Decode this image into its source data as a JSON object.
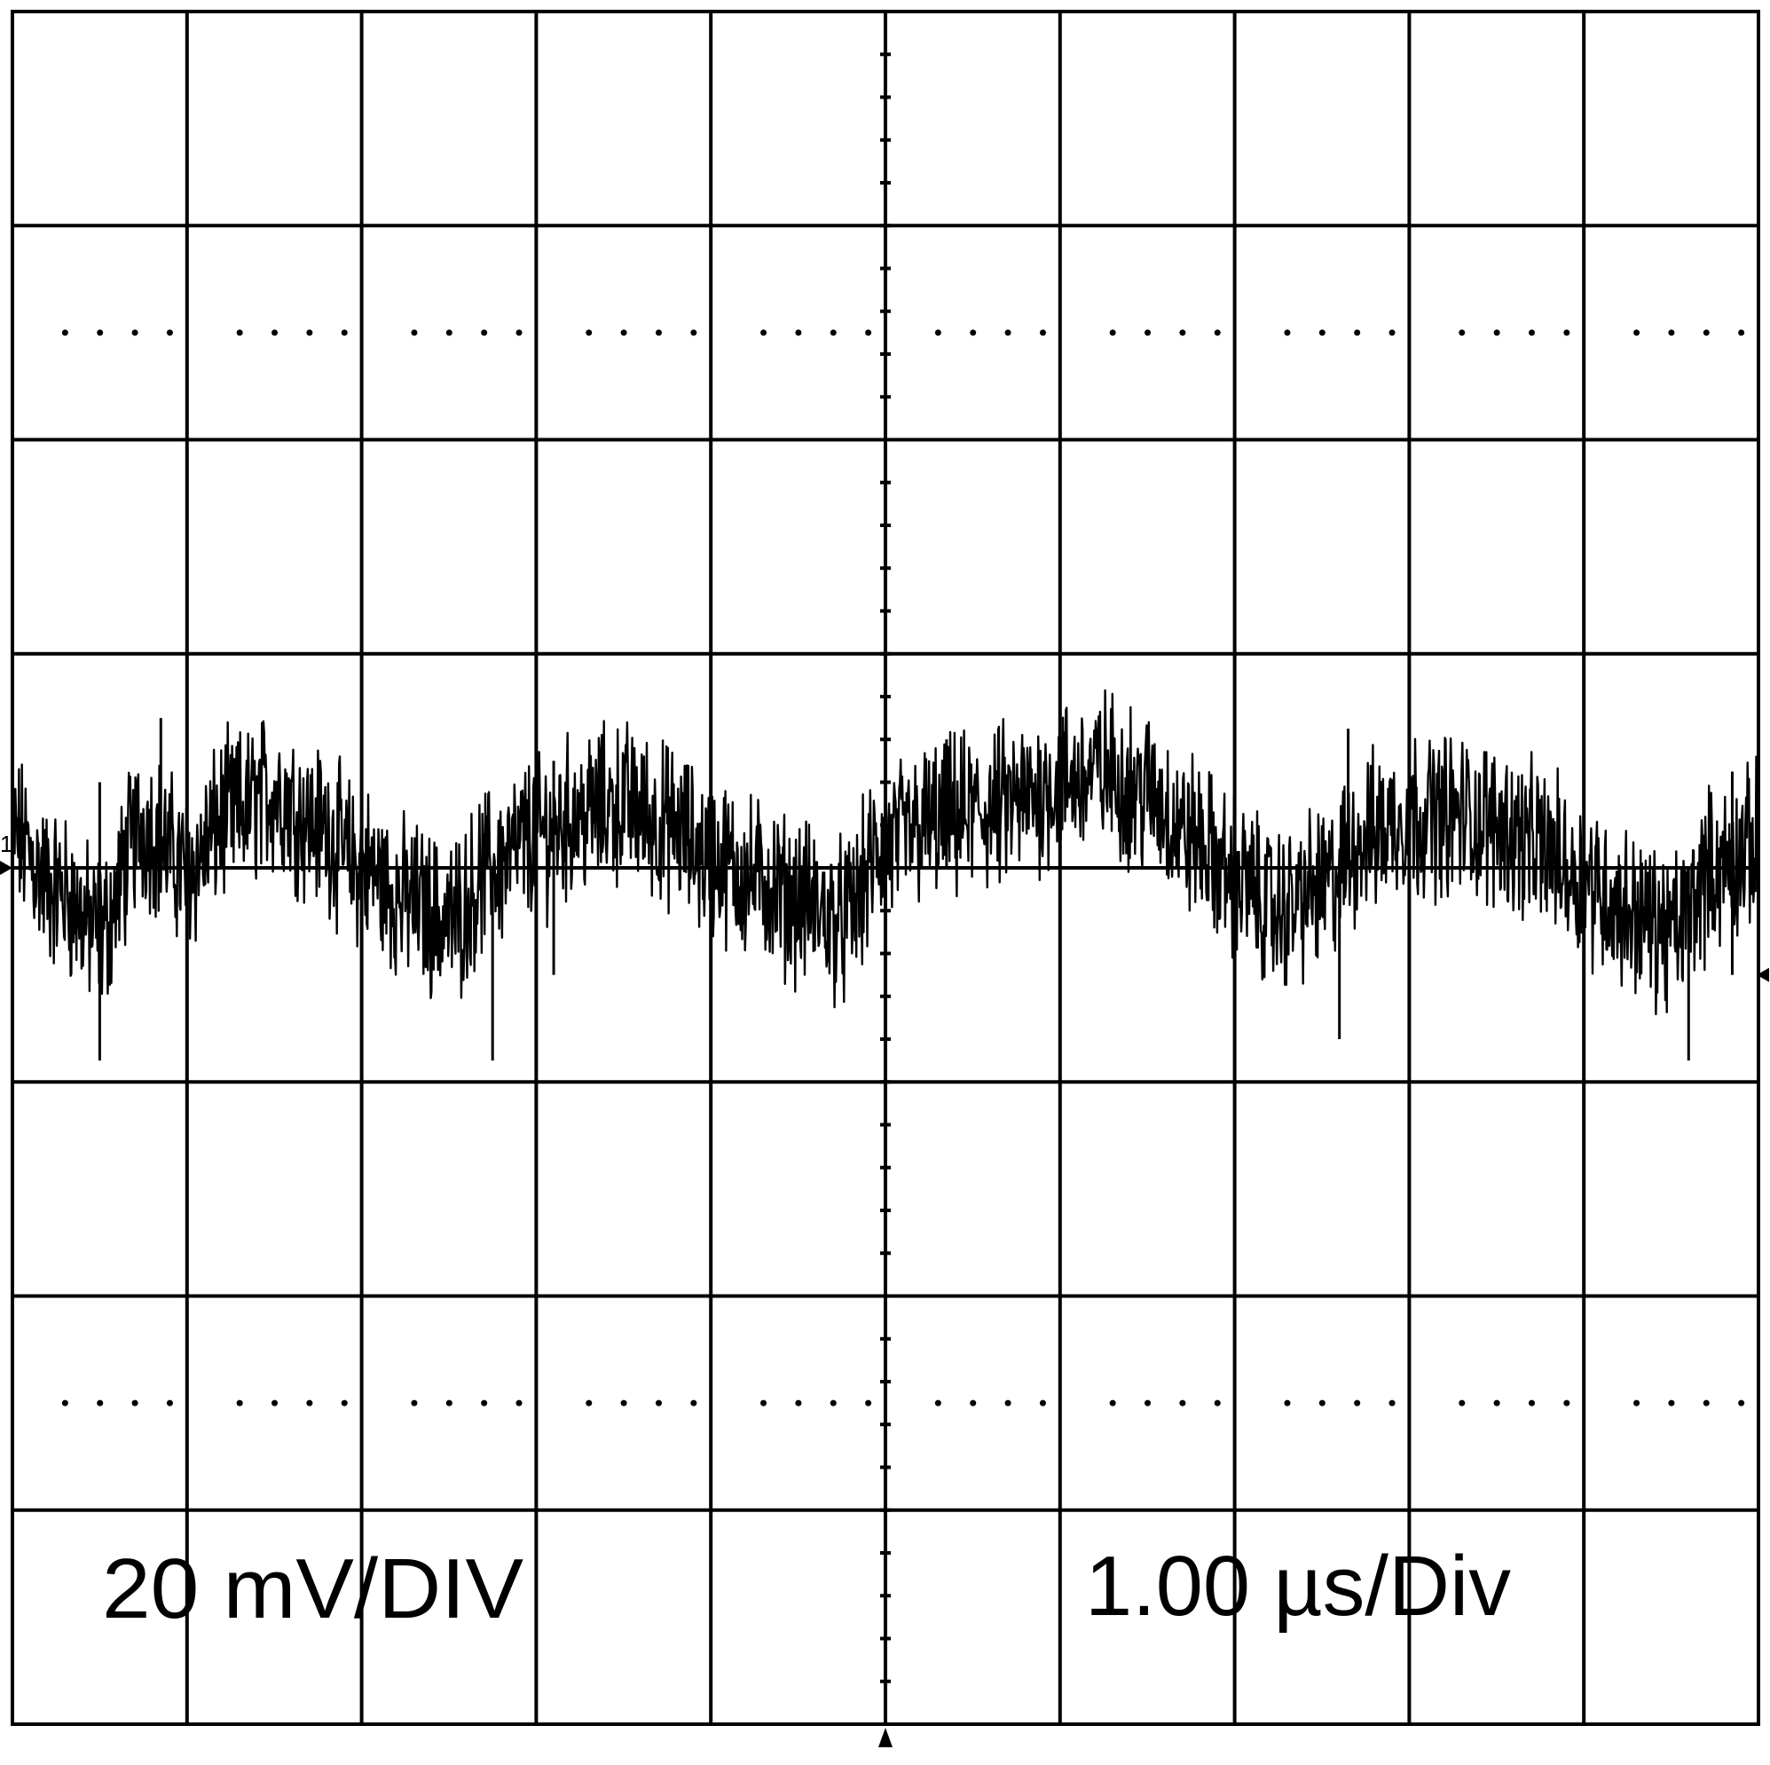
{
  "chart_data": {
    "type": "line",
    "title": "",
    "volts_per_div_label": "20 mV/DIV",
    "time_per_div_label": "1.00 µs/Div",
    "channel_marker": "1",
    "units": {
      "x": "µs",
      "y": "mV"
    },
    "xlim": [
      -5,
      5
    ],
    "ylim": [
      -80,
      80
    ],
    "grid": {
      "x_divisions": 10,
      "y_divisions": 8,
      "center_crosshair": true,
      "subdivision_dots": true
    },
    "series": [
      {
        "x": [
          -5.0,
          -4.75,
          -4.5,
          -4.25,
          -4.0,
          -3.75,
          -3.5,
          -3.25,
          -3.0,
          -2.75,
          -2.5,
          -2.25,
          -2.0,
          -1.75,
          -1.5,
          -1.25,
          -1.0,
          -0.75,
          -0.5,
          -0.25,
          0.0,
          0.25,
          0.5,
          0.75,
          1.0,
          1.25,
          1.5,
          1.75,
          2.0,
          2.25,
          2.5,
          2.75,
          3.0,
          3.25,
          3.5,
          3.75,
          4.0,
          4.25,
          4.5,
          4.75,
          5.0
        ],
        "y": [
          3,
          -2,
          -6,
          4,
          0,
          5,
          7,
          4,
          0,
          -3,
          -5,
          0,
          3,
          5,
          6,
          4,
          1,
          -1,
          -3,
          -5,
          2,
          4,
          5,
          6,
          8,
          9,
          7,
          3,
          -1,
          -4,
          -2,
          3,
          5,
          5,
          4,
          2,
          -1,
          -4,
          -6,
          0,
          2
        ]
      }
    ],
    "spikes": [
      {
        "x": -4.5,
        "y_min": -18,
        "y_max": 8
      },
      {
        "x": -4.15,
        "y_min": 0,
        "y_max": 14
      },
      {
        "x": -2.25,
        "y_min": -18,
        "y_max": 0
      },
      {
        "x": -1.9,
        "y_min": -10,
        "y_max": 10
      },
      {
        "x": 0.35,
        "y_min": 0,
        "y_max": 12
      },
      {
        "x": 2.6,
        "y_min": -16,
        "y_max": 0
      },
      {
        "x": 2.65,
        "y_min": 0,
        "y_max": 13
      },
      {
        "x": 4.6,
        "y_min": -18,
        "y_max": 0
      },
      {
        "x": 4.85,
        "y_min": -10,
        "y_max": 9
      }
    ]
  }
}
